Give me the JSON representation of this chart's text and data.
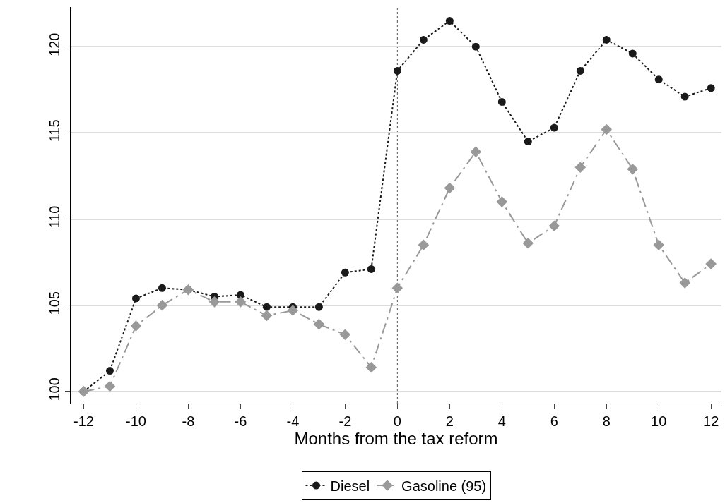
{
  "chart_data": {
    "type": "line",
    "xlabel": "Months from the tax reform",
    "x": [
      -12,
      -11,
      -10,
      -9,
      -8,
      -7,
      -6,
      -5,
      -4,
      -3,
      -2,
      -1,
      0,
      1,
      2,
      3,
      4,
      5,
      6,
      7,
      8,
      9,
      10,
      11,
      12
    ],
    "series": [
      {
        "name": "Diesel",
        "color": "#1a1a1a",
        "marker": "circle",
        "line_style": "dotted",
        "values": [
          100,
          101.2,
          105.4,
          106.0,
          105.9,
          105.5,
          105.6,
          104.9,
          104.9,
          104.9,
          106.9,
          107.1,
          118.6,
          120.4,
          121.5,
          120.0,
          116.8,
          114.5,
          115.3,
          118.6,
          120.4,
          119.6,
          118.1,
          117.1,
          117.6
        ]
      },
      {
        "name": "Gasoline (95)",
        "color": "#999999",
        "marker": "diamond",
        "line_style": "dashed",
        "values": [
          100,
          100.3,
          103.8,
          105.0,
          105.9,
          105.2,
          105.2,
          104.4,
          104.7,
          103.9,
          103.3,
          101.4,
          106.0,
          108.5,
          111.8,
          113.9,
          111.0,
          108.6,
          109.6,
          113.0,
          115.2,
          112.9,
          108.5,
          106.3,
          107.4
        ]
      }
    ],
    "xlim": [
      -12.5,
      12.4
    ],
    "xticks": [
      -12,
      -10,
      -8,
      -6,
      -4,
      -2,
      0,
      2,
      4,
      6,
      8,
      10,
      12
    ],
    "ylim": [
      99.3,
      122.3
    ],
    "yticks": [
      100,
      105,
      110,
      115,
      120
    ],
    "ref_lines": [
      {
        "axis": "x",
        "value": 0,
        "color": "#555555",
        "line_style": "dotted"
      }
    ],
    "grid": "y",
    "legend": "bottom"
  }
}
